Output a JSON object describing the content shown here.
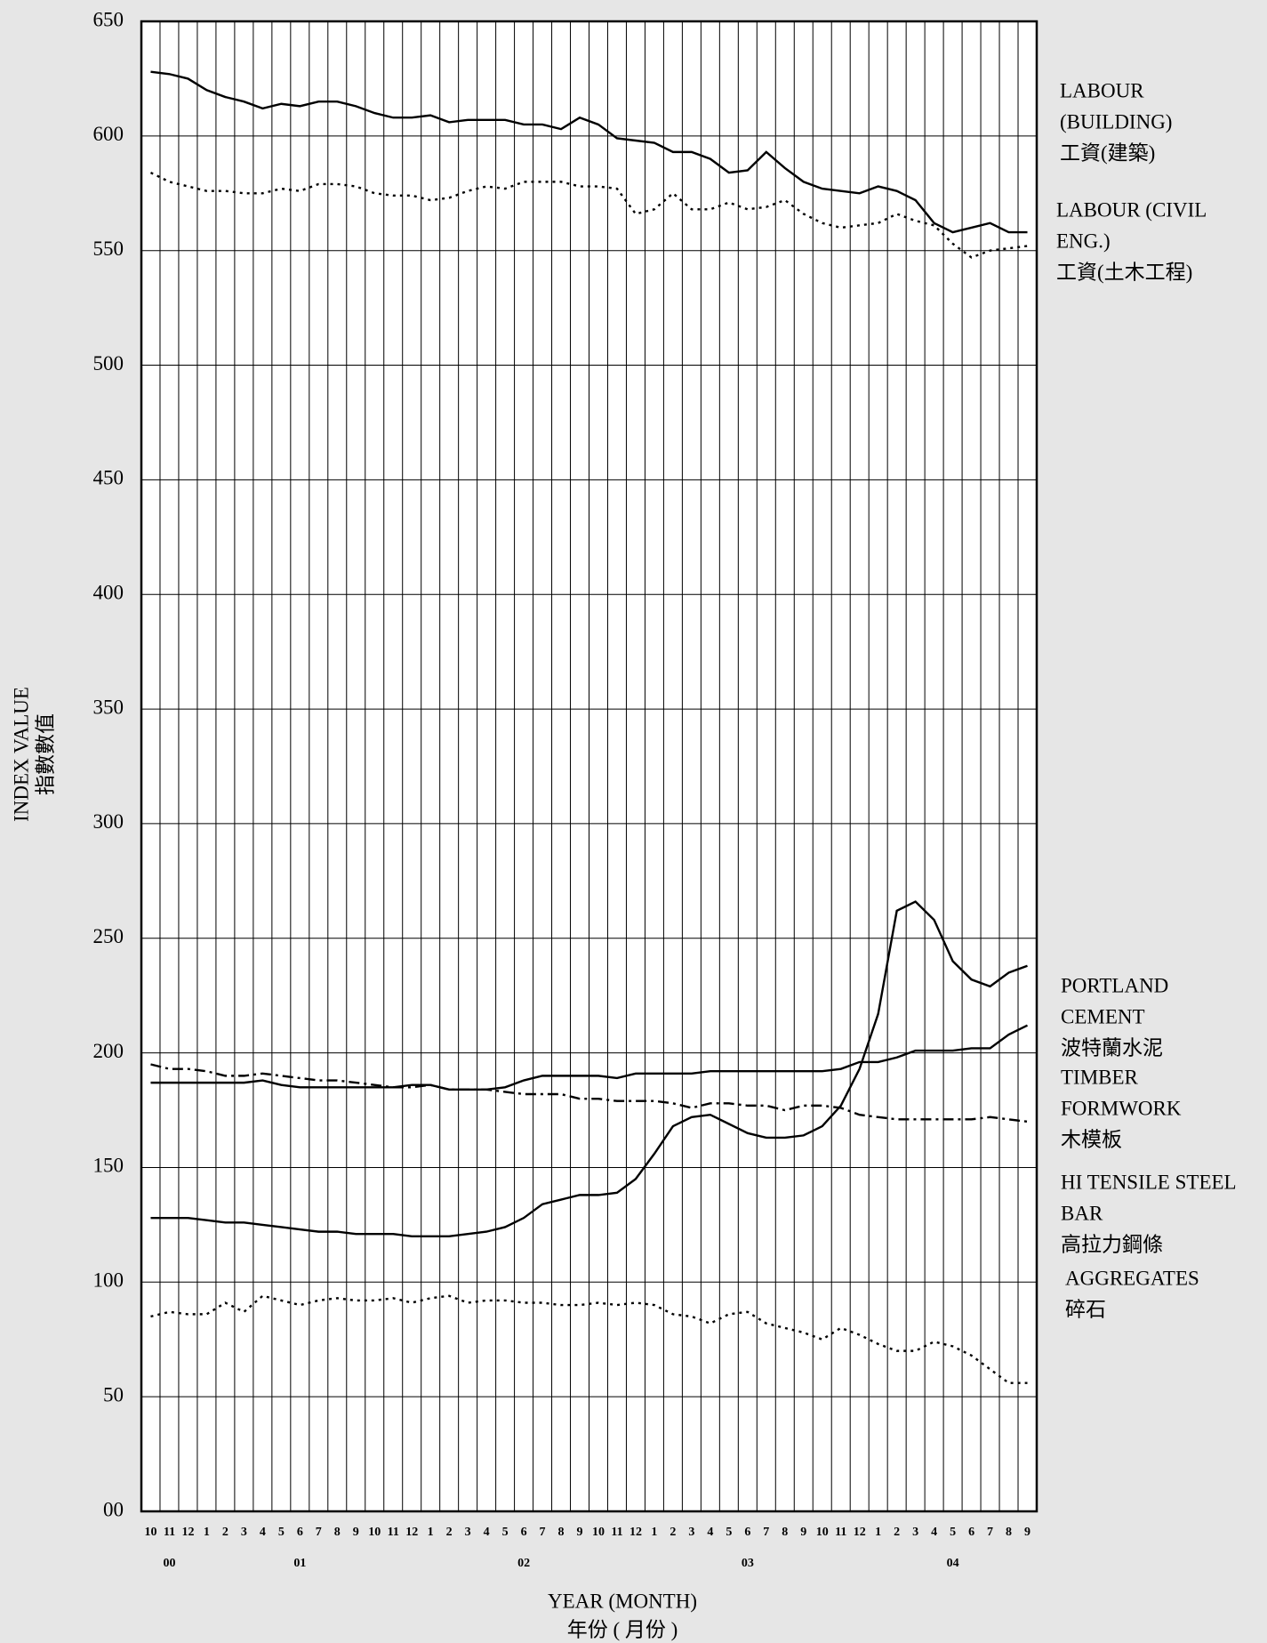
{
  "chart_data": {
    "type": "line",
    "y_label": [
      "INDEX VALUE",
      "指數數值"
    ],
    "x_label": [
      "YEAR (MONTH)",
      "年份 ( 月份 )"
    ],
    "categories": [
      "10",
      "11",
      "12",
      "1",
      "2",
      "3",
      "4",
      "5",
      "6",
      "7",
      "8",
      "9",
      "10",
      "11",
      "12",
      "1",
      "2",
      "3",
      "4",
      "5",
      "6",
      "7",
      "8",
      "9",
      "10",
      "11",
      "12",
      "1",
      "2",
      "3",
      "4",
      "5",
      "6",
      "7",
      "8",
      "9",
      "10",
      "11",
      "12",
      "1",
      "2",
      "3",
      "4",
      "5",
      "6",
      "7",
      "8",
      "9"
    ],
    "year_labels": [
      null,
      "00",
      null,
      null,
      null,
      null,
      null,
      null,
      "01",
      null,
      null,
      null,
      null,
      null,
      null,
      null,
      null,
      null,
      null,
      null,
      "02",
      null,
      null,
      null,
      null,
      null,
      null,
      null,
      null,
      null,
      null,
      null,
      "03",
      null,
      null,
      null,
      null,
      null,
      null,
      null,
      null,
      null,
      null,
      "04",
      null,
      null,
      null,
      null
    ],
    "ylim": [
      0,
      650
    ],
    "yticks": [
      {
        "value": 0,
        "label": "00"
      },
      50,
      100,
      150,
      200,
      250,
      300,
      350,
      400,
      450,
      500,
      550,
      600,
      650
    ],
    "grid": true,
    "series": [
      {
        "label_lines": [
          "LABOUR",
          "(BUILDING)",
          "工資(建築)"
        ],
        "color": "#000000",
        "dash": "solid",
        "values": [
          628,
          627,
          625,
          620,
          617,
          615,
          612,
          614,
          613,
          615,
          615,
          613,
          610,
          608,
          608,
          609,
          606,
          607,
          607,
          607,
          605,
          605,
          603,
          608,
          605,
          599,
          598,
          597,
          593,
          593,
          590,
          584,
          585,
          593,
          586,
          580,
          577,
          576,
          575,
          578,
          576,
          572,
          562,
          558,
          560,
          562,
          558,
          558
        ]
      },
      {
        "label_lines": [
          "LABOUR (CIVIL",
          "ENG.)",
          "工資(土木工程)"
        ],
        "color": "#000000",
        "dash": "dotted",
        "values": [
          584,
          580,
          578,
          576,
          576,
          575,
          575,
          577,
          576,
          579,
          579,
          578,
          575,
          574,
          574,
          572,
          573,
          576,
          578,
          577,
          580,
          580,
          580,
          578,
          578,
          577,
          566,
          568,
          575,
          568,
          568,
          571,
          568,
          569,
          572,
          566,
          562,
          560,
          561,
          562,
          566,
          563,
          561,
          553,
          547,
          550,
          551,
          552
        ]
      },
      {
        "label_lines": [
          "PORTLAND",
          "CEMENT",
          "波特蘭水泥"
        ],
        "color": "#000000",
        "dash": "solid",
        "values": [
          187,
          187,
          187,
          187,
          187,
          187,
          188,
          186,
          185,
          185,
          185,
          185,
          185,
          185,
          186,
          186,
          184,
          184,
          184,
          185,
          188,
          190,
          190,
          190,
          190,
          189,
          191,
          191,
          191,
          191,
          192,
          192,
          192,
          192,
          192,
          192,
          192,
          193,
          196,
          196,
          198,
          201,
          201,
          201,
          202,
          202,
          208,
          212
        ]
      },
      {
        "label_lines": [
          "TIMBER",
          "FORMWORK",
          "木模板"
        ],
        "color": "#000000",
        "dash": "dashdot",
        "values": [
          195,
          193,
          193,
          192,
          190,
          190,
          191,
          190,
          189,
          188,
          188,
          187,
          186,
          185,
          185,
          186,
          184,
          184,
          184,
          183,
          182,
          182,
          182,
          180,
          180,
          179,
          179,
          179,
          178,
          176,
          178,
          178,
          177,
          177,
          175,
          177,
          177,
          176,
          173,
          172,
          171,
          171,
          171,
          171,
          171,
          172,
          171,
          170
        ]
      },
      {
        "label_lines": [
          "HI TENSILE STEEL",
          "BAR",
          "高拉力鋼條"
        ],
        "color": "#000000",
        "dash": "solid",
        "values": [
          128,
          128,
          128,
          127,
          126,
          126,
          125,
          124,
          123,
          122,
          122,
          121,
          121,
          121,
          120,
          120,
          120,
          121,
          122,
          124,
          128,
          134,
          136,
          138,
          138,
          139,
          145,
          156,
          168,
          172,
          173,
          169,
          165,
          163,
          163,
          164,
          168,
          177,
          193,
          217,
          262,
          266,
          258,
          240,
          232,
          229,
          235,
          238
        ]
      },
      {
        "label_lines": [
          "AGGREGATES",
          "碎石"
        ],
        "color": "#000000",
        "dash": "dotted",
        "values": [
          85,
          87,
          86,
          86,
          91,
          87,
          94,
          92,
          90,
          92,
          93,
          92,
          92,
          93,
          91,
          93,
          94,
          91,
          92,
          92,
          91,
          91,
          90,
          90,
          91,
          90,
          91,
          90,
          86,
          85,
          82,
          86,
          87,
          82,
          80,
          78,
          75,
          80,
          77,
          73,
          70,
          70,
          74,
          72,
          68,
          62,
          56,
          56
        ]
      }
    ]
  }
}
